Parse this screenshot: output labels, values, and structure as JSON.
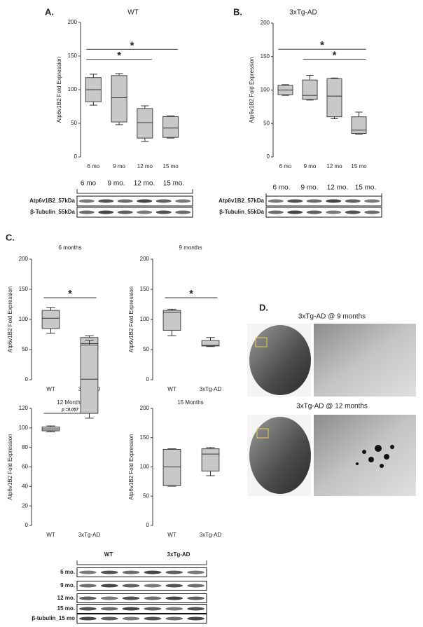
{
  "panels": {
    "a": "A.",
    "b": "B.",
    "c": "C.",
    "d": "D."
  },
  "chart_data": [
    {
      "type": "box",
      "title": "WT",
      "ylabel": "Atp6v1B2 Fold Expression",
      "categories": [
        "6 mo",
        "9 mo",
        "12 mo",
        "15 mo"
      ],
      "values": [
        [
          77,
          82,
          100,
          118,
          123
        ],
        [
          48,
          52,
          88,
          121,
          124
        ],
        [
          23,
          28,
          51,
          72,
          76
        ],
        [
          28,
          29,
          43,
          60,
          61
        ]
      ],
      "color": "#c8c8c8",
      "ylim": [
        0,
        200
      ],
      "yticks": [
        0,
        50,
        100,
        150,
        200
      ],
      "annotations": [
        {
          "text": "*",
          "from": 0,
          "to": 3,
          "y": 160
        },
        {
          "text": "*",
          "from": 0,
          "to": 2,
          "y": 145
        }
      ]
    },
    {
      "type": "box",
      "title": "3xTg-AD",
      "ylabel": "Atp6v1B2 Fold Expression",
      "categories": [
        "6 mo",
        "9 mo",
        "12 mo",
        "15 mo"
      ],
      "values": [
        [
          92,
          93,
          100,
          107,
          108
        ],
        [
          85,
          86,
          92,
          115,
          122
        ],
        [
          57,
          60,
          91,
          117,
          118
        ],
        [
          34,
          35,
          40,
          60,
          67
        ]
      ],
      "color": "#c8c8c8",
      "ylim": [
        0,
        200
      ],
      "yticks": [
        0,
        50,
        100,
        150,
        200
      ],
      "annotations": [
        {
          "text": "*",
          "from": 0,
          "to": 3,
          "y": 161
        },
        {
          "text": "*",
          "from": 1,
          "to": 3,
          "y": 146
        }
      ]
    },
    {
      "type": "box",
      "title": "6 months",
      "ylabel": "Atp6v1B2 Fold Expression",
      "categories": [
        "WT",
        "3xTg-AD"
      ],
      "values": [
        [
          77,
          85,
          102,
          115,
          120
        ],
        [
          47,
          50,
          60,
          70,
          73
        ]
      ],
      "color": "#c8c8c8",
      "ylim": [
        0,
        200
      ],
      "yticks": [
        0,
        50,
        100,
        150,
        200
      ],
      "annotations": [
        {
          "text": "*",
          "from": 0,
          "to": 1,
          "y": 136
        }
      ]
    },
    {
      "type": "box",
      "title": "9 months",
      "ylabel": "Atp6v1B2 Fold Expression",
      "categories": [
        "WT",
        "3xTg-AD"
      ],
      "values": [
        [
          73,
          82,
          112,
          115,
          117
        ],
        [
          55,
          56,
          57,
          65,
          70
        ]
      ],
      "color": "#c8c8c8",
      "ylim": [
        0,
        200
      ],
      "yticks": [
        0,
        50,
        100,
        150,
        200
      ],
      "annotations": [
        {
          "text": "*",
          "from": 0,
          "to": 1,
          "y": 136
        }
      ]
    },
    {
      "type": "box",
      "title": "12 Months",
      "ylabel": "Atp6v1B2 Fold Expression",
      "categories": [
        "WT",
        "3xTg-AD"
      ],
      "values": [
        [
          96,
          97,
          99,
          101,
          102
        ],
        [
          110,
          115,
          150,
          185,
          190
        ]
      ],
      "color": "#c8c8c8",
      "ylim": [
        0,
        120
      ],
      "yticks": [
        0,
        20,
        40,
        60,
        80,
        100,
        120
      ],
      "annotations": [
        {
          "text": "p =0.057",
          "from": 0,
          "to": 1,
          "y": 115
        }
      ]
    },
    {
      "type": "box",
      "title": "15 Months",
      "ylabel": "Atp6v1B2 Fold Expression",
      "categories": [
        "WT",
        "3xTg-AD"
      ],
      "values": [
        [
          67,
          68,
          100,
          130,
          131
        ],
        [
          85,
          93,
          122,
          131,
          133
        ]
      ],
      "color": "#c8c8c8",
      "ylim": [
        0,
        200
      ],
      "yticks": [
        0,
        50,
        100,
        150,
        200
      ],
      "annotations": []
    }
  ],
  "blots": [
    {
      "lanes": [
        "6 mo",
        "9 mo.",
        "12 mo.",
        "15 mo."
      ],
      "rows": [
        "Atp6v1B2_57kDa",
        "β-Tubulin_55kDa"
      ]
    },
    {
      "lanes": [
        "6 mo.",
        "9 mo.",
        "12 mo.",
        "15 mo."
      ],
      "rows": [
        "Atp6v1B2_57kDa",
        "β-Tubulin_55kDa"
      ]
    },
    {
      "lanes": [
        "WT",
        "3xTg-AD"
      ],
      "rows": [
        "6 mo.",
        "9 mo.",
        "12 mo.",
        "15 mo.",
        "β-tubulin_15 mo"
      ]
    }
  ],
  "panel_d": {
    "titles": [
      "3xTg-AD @ 9 months",
      "3xTg-AD @ 12 months"
    ]
  }
}
